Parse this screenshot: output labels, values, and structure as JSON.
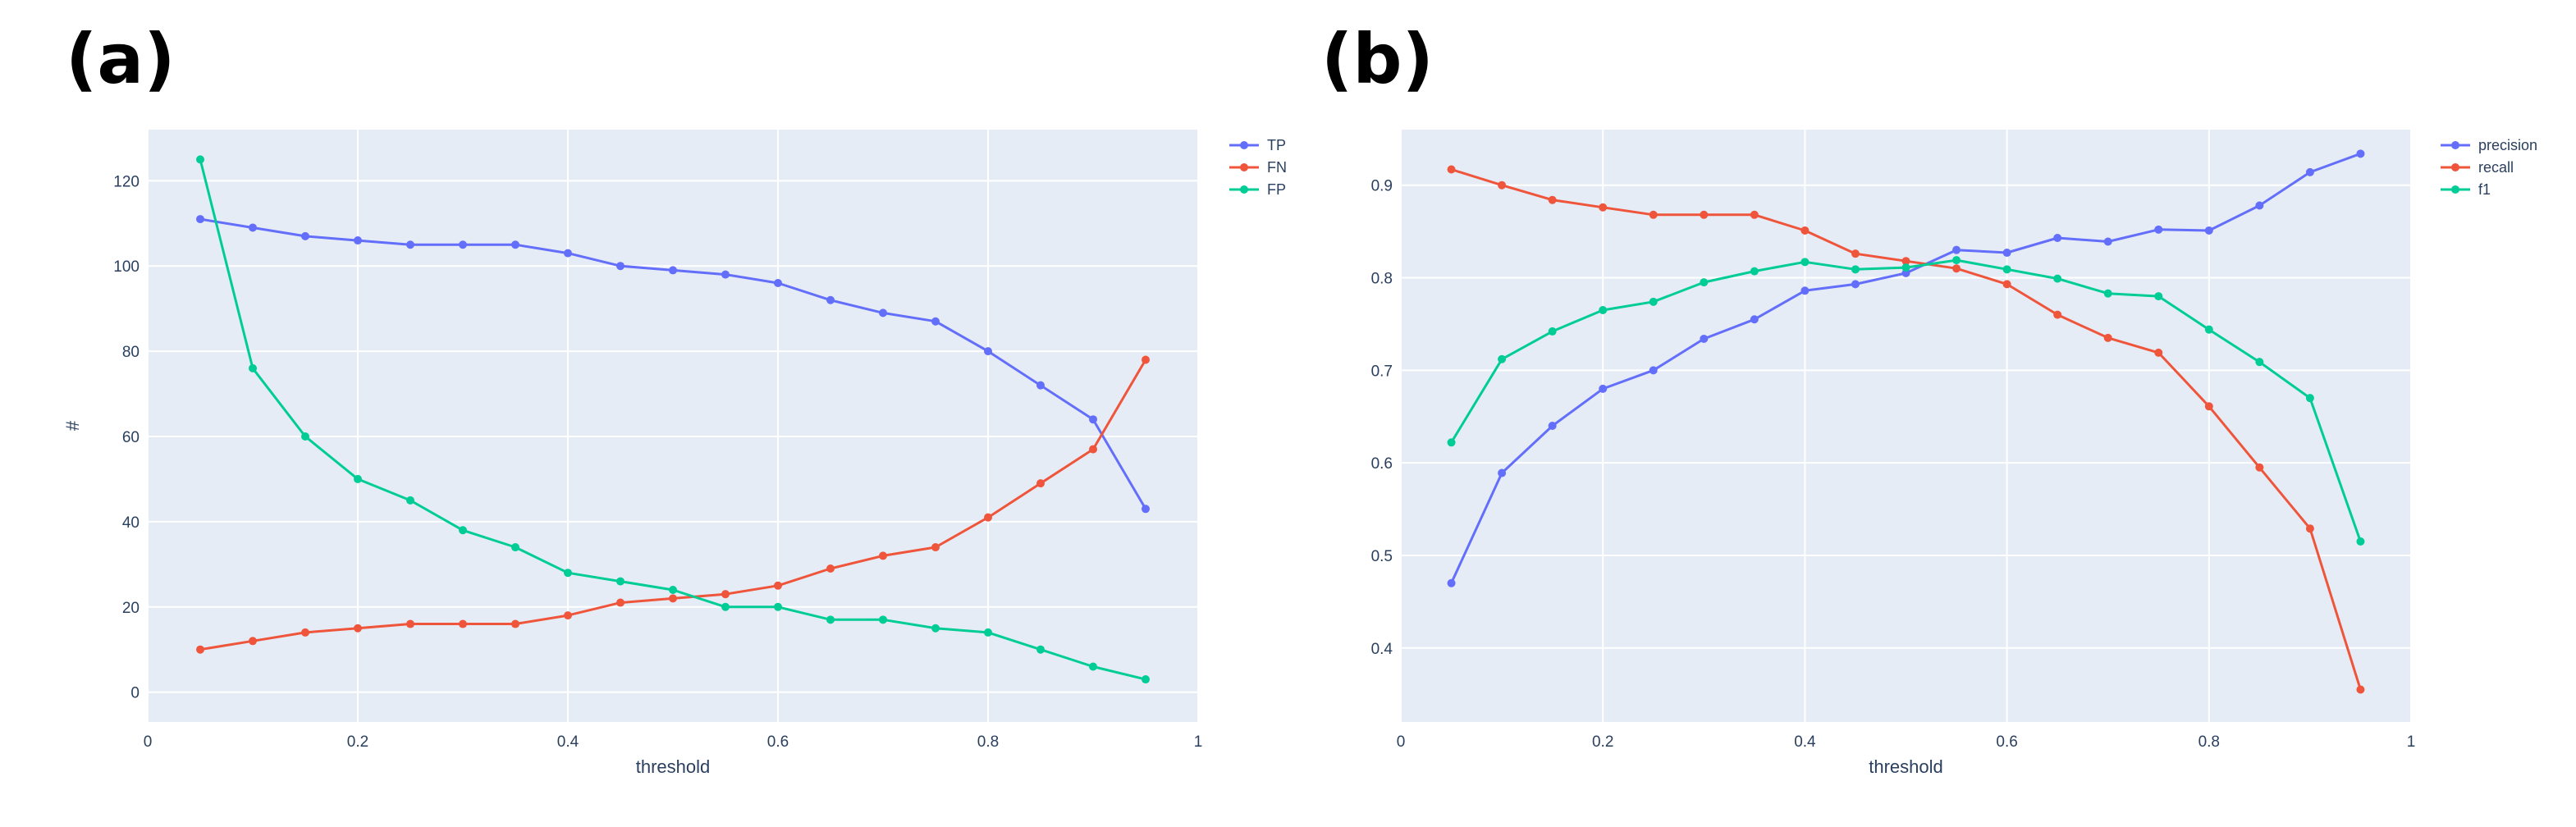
{
  "figure": {
    "panel_labels": [
      "(a)",
      "(b)"
    ]
  },
  "colors": {
    "plot_bg": "#e5ecf6",
    "grid": "#ffffff",
    "tick_text": "#2a3f5f",
    "blue": "#636efa",
    "red": "#ef553b",
    "green": "#00cc96"
  },
  "chart_data": [
    {
      "type": "line",
      "panel": "(a)",
      "title": "",
      "xlabel": "threshold",
      "ylabel": "#",
      "xlim": [
        0,
        1
      ],
      "ylim": [
        -7,
        132
      ],
      "xticks": [
        0,
        0.2,
        0.4,
        0.6,
        0.8,
        1
      ],
      "xtick_labels": [
        "0",
        "0.2",
        "0.4",
        "0.6",
        "0.8",
        "1"
      ],
      "yticks": [
        0,
        20,
        40,
        60,
        80,
        100,
        120
      ],
      "ytick_labels": [
        "0",
        "20",
        "40",
        "60",
        "80",
        "100",
        "120"
      ],
      "grid": true,
      "legend": "top-right",
      "x": [
        0.05,
        0.1,
        0.15,
        0.2,
        0.25,
        0.3,
        0.35,
        0.4,
        0.45,
        0.5,
        0.55,
        0.6,
        0.65,
        0.7,
        0.75,
        0.8,
        0.85,
        0.9,
        0.95
      ],
      "series": [
        {
          "name": "TP",
          "color": "#636efa",
          "values": [
            111,
            109,
            107,
            106,
            105,
            105,
            105,
            103,
            100,
            99,
            98,
            96,
            92,
            89,
            87,
            80,
            72,
            64,
            43
          ]
        },
        {
          "name": "FN",
          "color": "#ef553b",
          "values": [
            10,
            12,
            14,
            15,
            16,
            16,
            16,
            18,
            21,
            22,
            23,
            25,
            29,
            32,
            34,
            41,
            49,
            57,
            78
          ]
        },
        {
          "name": "FP",
          "color": "#00cc96",
          "values": [
            125,
            76,
            60,
            50,
            45,
            38,
            34,
            28,
            26,
            24,
            20,
            20,
            17,
            17,
            15,
            14,
            10,
            6,
            3
          ]
        }
      ]
    },
    {
      "type": "line",
      "panel": "(b)",
      "title": "",
      "xlabel": "threshold",
      "ylabel": "",
      "xlim": [
        0,
        1
      ],
      "ylim": [
        0.32,
        0.96
      ],
      "xticks": [
        0,
        0.2,
        0.4,
        0.6,
        0.8,
        1
      ],
      "xtick_labels": [
        "0",
        "0.2",
        "0.4",
        "0.6",
        "0.8",
        "1"
      ],
      "yticks": [
        0.4,
        0.5,
        0.6,
        0.7,
        0.8,
        0.9
      ],
      "ytick_labels": [
        "0.4",
        "0.5",
        "0.6",
        "0.7",
        "0.8",
        "0.9"
      ],
      "grid": true,
      "legend": "top-right",
      "x": [
        0.05,
        0.1,
        0.15,
        0.2,
        0.25,
        0.3,
        0.35,
        0.4,
        0.45,
        0.5,
        0.55,
        0.6,
        0.65,
        0.7,
        0.75,
        0.8,
        0.85,
        0.9,
        0.95
      ],
      "series": [
        {
          "name": "precision",
          "color": "#636efa",
          "values": [
            0.47,
            0.589,
            0.64,
            0.68,
            0.7,
            0.734,
            0.755,
            0.786,
            0.793,
            0.805,
            0.83,
            0.827,
            0.843,
            0.839,
            0.852,
            0.851,
            0.878,
            0.914,
            0.934
          ]
        },
        {
          "name": "recall",
          "color": "#ef553b",
          "values": [
            0.917,
            0.9,
            0.884,
            0.876,
            0.868,
            0.868,
            0.868,
            0.851,
            0.826,
            0.818,
            0.81,
            0.793,
            0.76,
            0.735,
            0.719,
            0.661,
            0.595,
            0.529,
            0.355
          ]
        },
        {
          "name": "f1",
          "color": "#00cc96",
          "values": [
            0.622,
            0.712,
            0.742,
            0.765,
            0.774,
            0.795,
            0.807,
            0.817,
            0.809,
            0.811,
            0.819,
            0.809,
            0.799,
            0.783,
            0.78,
            0.744,
            0.709,
            0.67,
            0.515
          ]
        }
      ]
    }
  ]
}
